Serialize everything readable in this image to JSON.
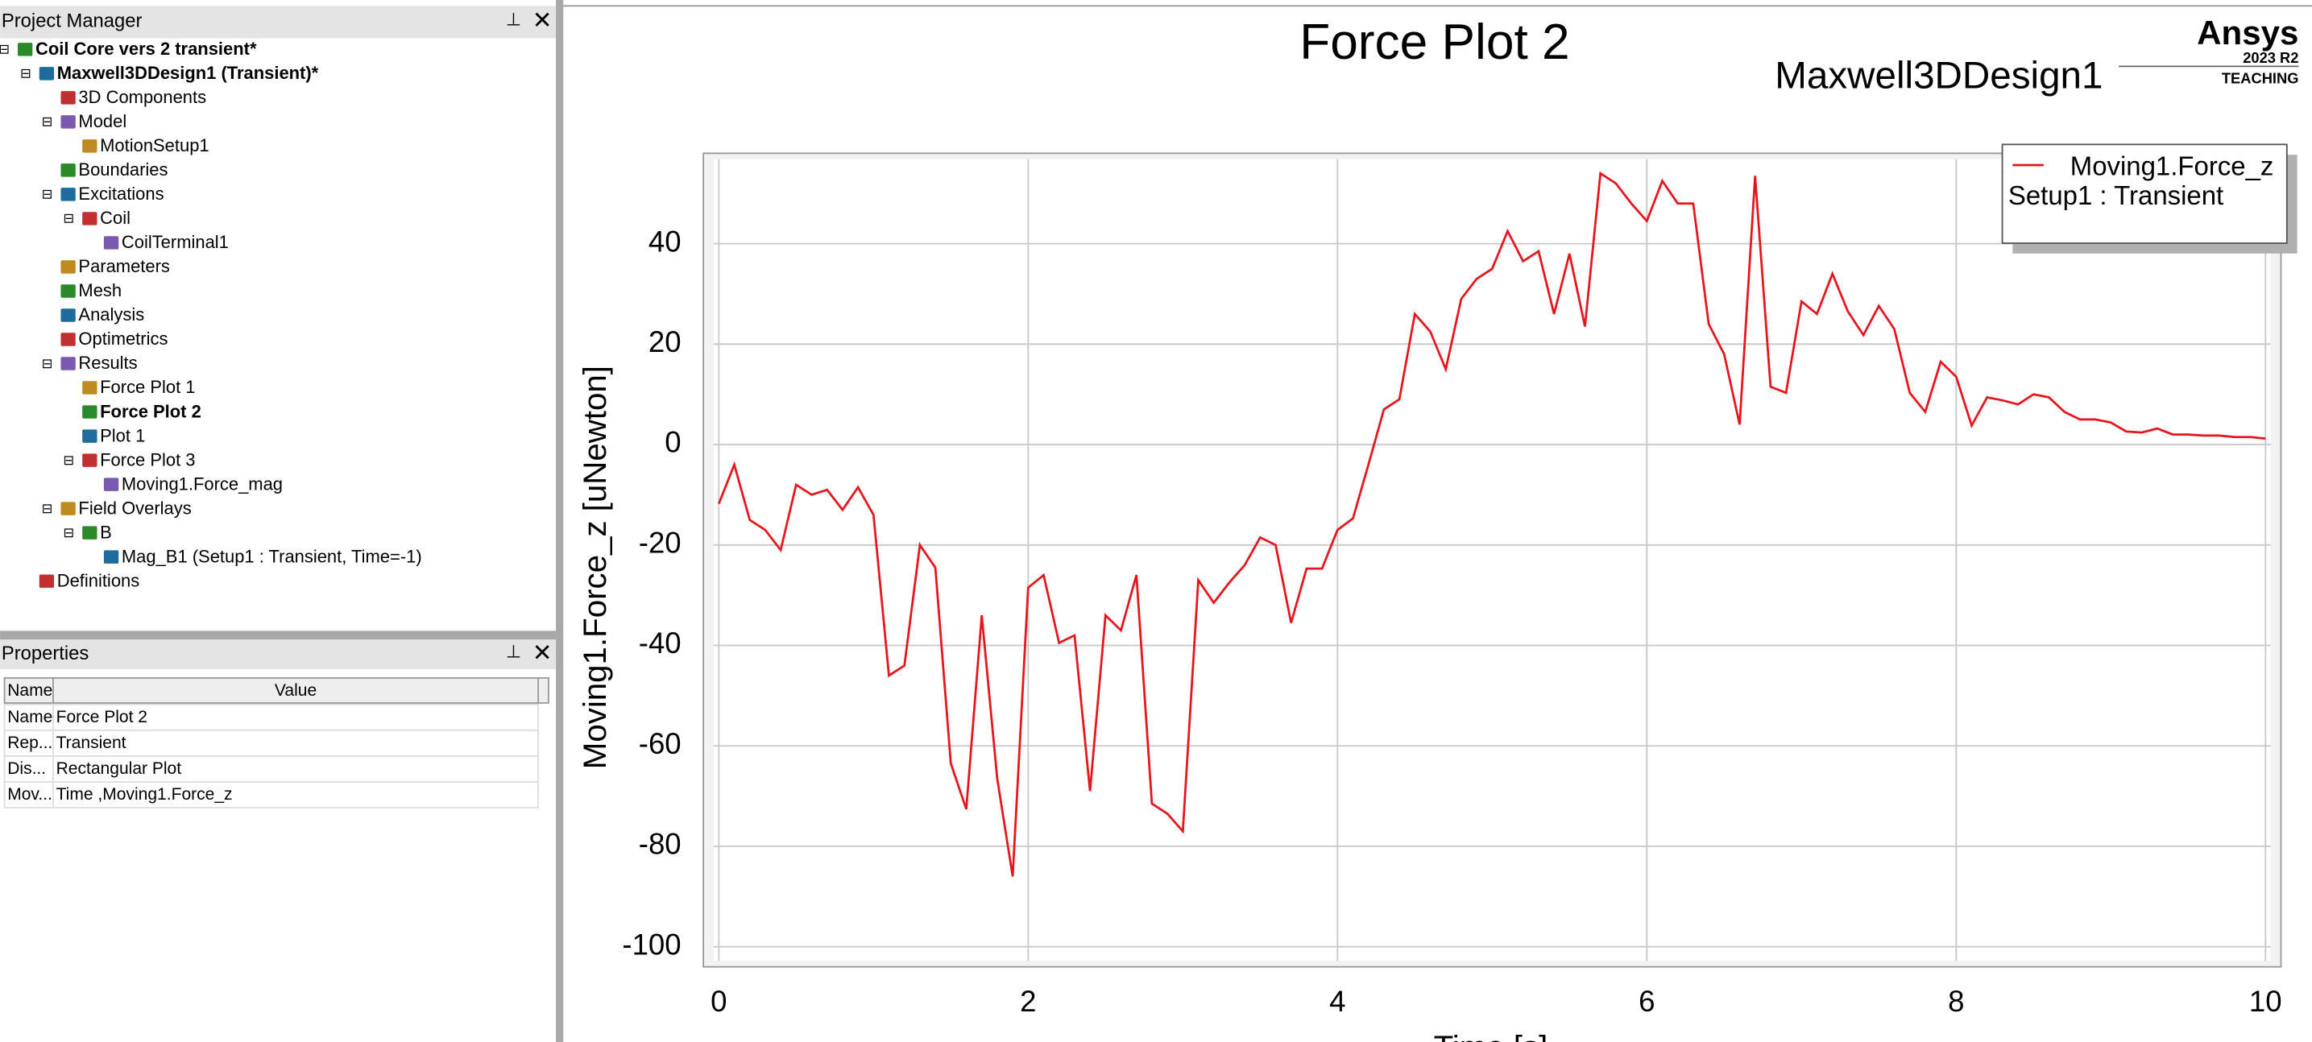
{
  "project_manager": {
    "title": "Project Manager",
    "nodes": [
      {
        "label": "Coil Core vers 2 transient*",
        "depth": 0,
        "bold": true
      },
      {
        "label": "Maxwell3DDesign1 (Transient)*",
        "depth": 1,
        "bold": true
      },
      {
        "label": "3D Components",
        "depth": 2
      },
      {
        "label": "Model",
        "depth": 2
      },
      {
        "label": "MotionSetup1",
        "depth": 3
      },
      {
        "label": "Boundaries",
        "depth": 2
      },
      {
        "label": "Excitations",
        "depth": 2
      },
      {
        "label": "Coil",
        "depth": 3
      },
      {
        "label": "CoilTerminal1",
        "depth": 4
      },
      {
        "label": "Parameters",
        "depth": 2
      },
      {
        "label": "Mesh",
        "depth": 2
      },
      {
        "label": "Analysis",
        "depth": 2
      },
      {
        "label": "Optimetrics",
        "depth": 2
      },
      {
        "label": "Results",
        "depth": 2
      },
      {
        "label": "Force Plot 1",
        "depth": 3
      },
      {
        "label": "Force Plot 2",
        "depth": 3,
        "bold": true
      },
      {
        "label": "Plot 1",
        "depth": 3
      },
      {
        "label": "Force Plot 3",
        "depth": 3
      },
      {
        "label": "Moving1.Force_mag",
        "depth": 4
      },
      {
        "label": "Field Overlays",
        "depth": 2
      },
      {
        "label": "B",
        "depth": 3
      },
      {
        "label": "Mag_B1 (Setup1 : Transient, Time=-1)",
        "depth": 4
      },
      {
        "label": "Definitions",
        "depth": 1
      }
    ]
  },
  "properties": {
    "title": "Properties",
    "columns": [
      "Name",
      "Value"
    ],
    "rows": [
      [
        "Name",
        "Force Plot 2"
      ],
      [
        "Rep...",
        "Transient"
      ],
      [
        "Dis...",
        "Rectangular Plot"
      ],
      [
        "Mov...",
        "Time ,Moving1.Force_z"
      ]
    ]
  },
  "logo": {
    "brand": "Ansys",
    "version": "2023 R2",
    "edition": "TEACHING"
  },
  "chart_data": {
    "type": "line",
    "title": "Force Plot 2",
    "subtitle": "Maxwell3DDesign1",
    "x_label": "Time [s]",
    "y_label": "Moving1.Force_z [uNewton]",
    "legend_subtitle": "Setup1 : Transient",
    "legend": "upper right",
    "grid": true,
    "xlim": [
      -0.1,
      10.1
    ],
    "ylim": [
      -104,
      58
    ],
    "xticks": [
      0,
      2,
      4,
      6,
      8,
      10
    ],
    "yticks": [
      -100,
      -80,
      -60,
      -40,
      -20,
      0,
      20,
      40
    ],
    "x": [
      0,
      0.1,
      0.2,
      0.3,
      0.4,
      0.5,
      0.6,
      0.7,
      0.8,
      0.9,
      1,
      1.1,
      1.2,
      1.3,
      1.4,
      1.5,
      1.6,
      1.7,
      1.8,
      1.9,
      2,
      2.1,
      2.2,
      2.3,
      2.4,
      2.5,
      2.6,
      2.7,
      2.8,
      2.9,
      3,
      3.1,
      3.2,
      3.3,
      3.4,
      3.5,
      3.6,
      3.7,
      3.8,
      3.9,
      4,
      4.1,
      4.2,
      4.3,
      4.4,
      4.5,
      4.6,
      4.7,
      4.8,
      4.9,
      5,
      5.1,
      5.2,
      5.3,
      5.4,
      5.5,
      5.6,
      5.7,
      5.8,
      5.9,
      6,
      6.1,
      6.2,
      6.3,
      6.4,
      6.5,
      6.6,
      6.7,
      6.8,
      6.9,
      7,
      7.1,
      7.2,
      7.3,
      7.4,
      7.5,
      7.6,
      7.7,
      7.8,
      7.9,
      8,
      8.1,
      8.2,
      8.3,
      8.4,
      8.5,
      8.6,
      8.7,
      8.8,
      8.9,
      9,
      9.1,
      9.2,
      9.3,
      9.4,
      9.5,
      9.6,
      9.7,
      9.8,
      9.9,
      10
    ],
    "series": [
      {
        "name": "Moving1.Force_z",
        "color": "#e8141c",
        "values": [
          -11.8,
          -4,
          -15,
          -17,
          -21,
          -8,
          -10,
          -9,
          -13,
          -8.5,
          -14,
          -46,
          -44,
          -20,
          -24.5,
          -63.5,
          -72.6,
          -34,
          -66.5,
          -86,
          -28.5,
          -26,
          -39.5,
          -38,
          -69,
          -34,
          -37,
          -26,
          -71.5,
          -73.5,
          -77,
          -27,
          -31.5,
          -27.5,
          -24,
          -18.5,
          -20,
          -35.5,
          -24.7,
          -24.7,
          -17,
          -14.7,
          -4,
          7,
          9,
          26,
          22.5,
          15,
          29,
          33,
          35,
          42.5,
          36.5,
          38.5,
          26,
          38,
          23.5,
          54,
          52,
          48,
          44.5,
          52.5,
          48,
          48,
          24,
          18,
          4,
          53.5,
          11.5,
          10.3,
          28.5,
          26,
          34,
          26.5,
          21.8,
          27.6,
          23,
          10.3,
          6.5,
          16.5,
          13.5,
          3.8,
          9.4,
          8.8,
          8,
          10,
          9.4,
          6.5,
          5,
          5,
          4.4,
          2.6,
          2.4,
          3.2,
          2,
          2,
          1.8,
          1.8,
          1.5,
          1.5,
          1.2
        ]
      }
    ]
  }
}
